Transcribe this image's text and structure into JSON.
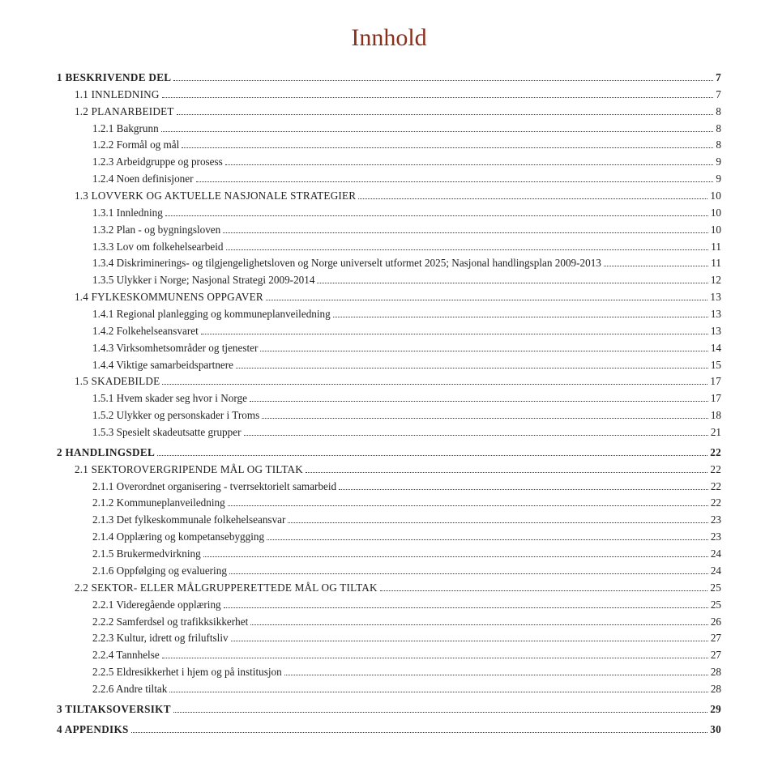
{
  "title": "Innhold",
  "colors": {
    "title_color": "#8b2e1a",
    "text_color": "#222222",
    "dot_color": "#333333",
    "background": "#ffffff"
  },
  "typography": {
    "title_fontsize": 30,
    "body_fontsize": 13.2,
    "line_height": 1.58,
    "font_family": "Georgia, serif"
  },
  "entries": [
    {
      "level": 1,
      "style": "heading1",
      "label": "1 BESKRIVENDE DEL",
      "page": "7"
    },
    {
      "level": 2,
      "style": "heading2 uc",
      "label": "1.1 INNLEDNING",
      "page": "7"
    },
    {
      "level": 2,
      "style": "heading2 uc",
      "label": "1.2 PLANARBEIDET",
      "page": "8"
    },
    {
      "level": 3,
      "style": "",
      "label": "1.2.1 Bakgrunn",
      "page": "8"
    },
    {
      "level": 3,
      "style": "",
      "label": "1.2.2 Formål og mål",
      "page": "8"
    },
    {
      "level": 3,
      "style": "",
      "label": "1.2.3 Arbeidgruppe og prosess",
      "page": "9"
    },
    {
      "level": 3,
      "style": "",
      "label": "1.2.4 Noen definisjoner",
      "page": "9"
    },
    {
      "level": 2,
      "style": "heading2 uc",
      "label": "1.3 LOVVERK OG AKTUELLE NASJONALE STRATEGIER",
      "page": "10"
    },
    {
      "level": 3,
      "style": "",
      "label": "1.3.1 Innledning",
      "page": "10"
    },
    {
      "level": 3,
      "style": "",
      "label": "1.3.2 Plan - og bygningsloven",
      "page": "10"
    },
    {
      "level": 3,
      "style": "",
      "label": "1.3.3 Lov om folkehelsearbeid",
      "page": "11"
    },
    {
      "level": 3,
      "style": "",
      "label": "1.3.4 Diskriminerings- og tilgjengelighetsloven og Norge universelt utformet 2025; Nasjonal handlingsplan 2009-2013",
      "page": "11"
    },
    {
      "level": 3,
      "style": "",
      "label": "1.3.5 Ulykker i Norge; Nasjonal Strategi 2009-2014",
      "page": "12"
    },
    {
      "level": 2,
      "style": "heading2 uc",
      "label": "1.4 FYLKESKOMMUNENS OPPGAVER",
      "page": "13"
    },
    {
      "level": 3,
      "style": "",
      "label": "1.4.1 Regional planlegging og kommuneplanveiledning",
      "page": "13"
    },
    {
      "level": 3,
      "style": "",
      "label": "1.4.2 Folkehelseansvaret",
      "page": "13"
    },
    {
      "level": 3,
      "style": "",
      "label": "1.4.3 Virksomhetsområder og tjenester",
      "page": "14"
    },
    {
      "level": 3,
      "style": "",
      "label": "1.4.4 Viktige samarbeidspartnere",
      "page": "15"
    },
    {
      "level": 2,
      "style": "heading2 uc",
      "label": "1.5 SKADEBILDE",
      "page": "17"
    },
    {
      "level": 3,
      "style": "",
      "label": "1.5.1 Hvem skader seg hvor i Norge",
      "page": "17"
    },
    {
      "level": 3,
      "style": "",
      "label": "1.5.2 Ulykker og personskader i Troms",
      "page": "18"
    },
    {
      "level": 3,
      "style": "",
      "label": "1.5.3 Spesielt skadeutsatte grupper",
      "page": "21"
    },
    {
      "level": 1,
      "style": "heading1",
      "label": "2 HANDLINGSDEL",
      "page": "22",
      "gap_before": true
    },
    {
      "level": 2,
      "style": "heading2 uc",
      "label": "2.1 SEKTOROVERGRIPENDE MÅL OG TILTAK",
      "page": "22"
    },
    {
      "level": 3,
      "style": "",
      "label": "2.1.1 Overordnet organisering - tverrsektorielt samarbeid",
      "page": "22"
    },
    {
      "level": 3,
      "style": "",
      "label": "2.1.2 Kommuneplanveiledning",
      "page": "22"
    },
    {
      "level": 3,
      "style": "",
      "label": "2.1.3 Det fylkeskommunale folkehelseansvar",
      "page": "23"
    },
    {
      "level": 3,
      "style": "",
      "label": "2.1.4 Opplæring og kompetansebygging",
      "page": "23"
    },
    {
      "level": 3,
      "style": "",
      "label": "2.1.5 Brukermedvirkning",
      "page": "24"
    },
    {
      "level": 3,
      "style": "",
      "label": "2.1.6 Oppfølging og evaluering",
      "page": "24"
    },
    {
      "level": 2,
      "style": "heading2 uc",
      "label": "2.2 SEKTOR- ELLER MÅLGRUPPERETTEDE MÅL OG TILTAK",
      "page": "25"
    },
    {
      "level": 3,
      "style": "",
      "label": "2.2.1 Videregående opplæring",
      "page": "25"
    },
    {
      "level": 3,
      "style": "",
      "label": "2.2.2 Samferdsel og trafikksikkerhet",
      "page": "26"
    },
    {
      "level": 3,
      "style": "",
      "label": "2.2.3 Kultur, idrett og friluftsliv",
      "page": "27"
    },
    {
      "level": 3,
      "style": "",
      "label": "2.2.4 Tannhelse",
      "page": "27"
    },
    {
      "level": 3,
      "style": "",
      "label": "2.2.5 Eldresikkerhet i hjem og på institusjon",
      "page": "28"
    },
    {
      "level": 3,
      "style": "",
      "label": "2.2.6 Andre tiltak",
      "page": "28"
    },
    {
      "level": 1,
      "style": "heading1",
      "label": "3 TILTAKSOVERSIKT",
      "page": "29",
      "gap_before": true
    },
    {
      "level": 1,
      "style": "heading1",
      "label": "4 APPENDIKS",
      "page": "30",
      "gap_before": true
    }
  ]
}
